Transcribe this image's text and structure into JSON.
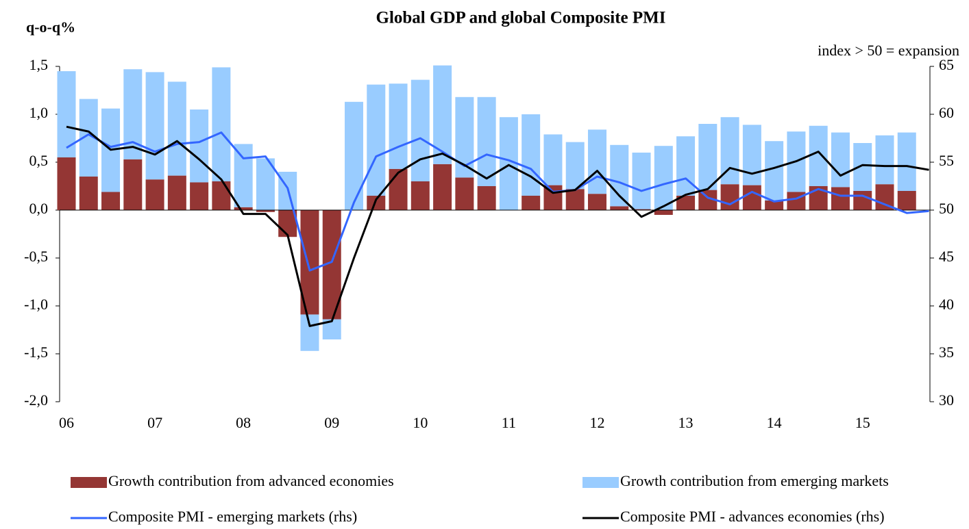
{
  "chart_data": {
    "type": "bar",
    "stacked": true,
    "title": "Global GDP and global Composite PMI",
    "y_label": "q-o-q%",
    "y2_label": "index > 50 = expansion",
    "categories": [
      "06",
      null,
      null,
      null,
      "07",
      null,
      null,
      null,
      "08",
      null,
      null,
      null,
      "09",
      null,
      null,
      null,
      "10",
      null,
      null,
      null,
      "11",
      null,
      null,
      null,
      "12",
      null,
      null,
      null,
      "13",
      null,
      null,
      null,
      "14",
      null,
      null,
      null,
      "15",
      null,
      null,
      null
    ],
    "series": [
      {
        "name": "Growth contribution from advanced economies",
        "color": "#943634",
        "values": [
          0.55,
          0.35,
          0.19,
          0.53,
          0.32,
          0.36,
          0.29,
          0.3,
          0.03,
          -0.02,
          -0.28,
          -1.09,
          -1.14,
          0,
          0.15,
          0.43,
          0.3,
          0.48,
          0.34,
          0.25,
          0,
          0.15,
          0.26,
          0.22,
          0.17,
          0.04,
          0.01,
          -0.05,
          0.15,
          0.21,
          0.27,
          0.26,
          0.1,
          0.19,
          0.25,
          0.24,
          0.2,
          0.27,
          0.2,
          null
        ]
      },
      {
        "name": "Growth contribution from emerging markets",
        "color": "#99ccff",
        "values": [
          0.9,
          0.81,
          0.87,
          0.94,
          1.12,
          0.98,
          0.76,
          1.19,
          0.66,
          0.54,
          0.4,
          -0.38,
          -0.21,
          1.13,
          1.16,
          0.89,
          1.06,
          1.03,
          0.84,
          0.93,
          0.97,
          0.85,
          0.53,
          0.49,
          0.67,
          0.64,
          0.59,
          0.67,
          0.62,
          0.69,
          0.7,
          0.63,
          0.62,
          0.63,
          0.63,
          0.57,
          0.5,
          0.51,
          0.61,
          null
        ]
      },
      {
        "name": "Composite PMI - emerging markets (rhs)",
        "color": "#3366ff",
        "axis": "y2",
        "values": [
          56.5,
          57.9,
          56.6,
          57.1,
          56.1,
          56.9,
          57.1,
          58.1,
          55.4,
          55.6,
          52.3,
          43.7,
          44.6,
          50.8,
          55.6,
          56.6,
          57.5,
          56.1,
          54.6,
          55.8,
          55.2,
          54.3,
          51.9,
          52.1,
          53.5,
          52.9,
          52.0,
          52.7,
          53.3,
          51.3,
          50.6,
          51.9,
          50.9,
          51.2,
          52.2,
          51.5,
          51.5,
          50.6,
          49.7,
          49.9
        ]
      },
      {
        "name": "Composite PMI - advances economies (rhs)",
        "color": "#000000",
        "axis": "y2",
        "values": [
          58.7,
          58.2,
          56.3,
          56.6,
          55.8,
          57.2,
          55.3,
          53.2,
          49.6,
          49.6,
          47.4,
          37.9,
          38.4,
          45.0,
          51.1,
          53.9,
          55.3,
          55.9,
          54.7,
          53.3,
          54.7,
          53.5,
          51.8,
          52.1,
          54.1,
          51.5,
          49.3,
          50.4,
          51.6,
          52.2,
          54.4,
          53.8,
          54.4,
          55.1,
          56.1,
          53.6,
          54.7,
          54.6,
          54.6,
          54.2
        ]
      }
    ],
    "ylim": [
      -2,
      1.5
    ],
    "yticks": [
      {
        "value": -2,
        "label": "-2,0"
      },
      {
        "value": -1.5,
        "label": "-1,5"
      },
      {
        "value": -1,
        "label": "-1,0"
      },
      {
        "value": -0.5,
        "label": "-0,5"
      },
      {
        "value": 0,
        "label": "0,0"
      },
      {
        "value": 0.5,
        "label": "0,5"
      },
      {
        "value": 1,
        "label": "1,0"
      },
      {
        "value": 1.5,
        "label": "1,5"
      }
    ],
    "y2lim": [
      30,
      65
    ],
    "y2ticks": [
      30,
      35,
      40,
      45,
      50,
      55,
      60,
      65
    ],
    "grid": false
  }
}
